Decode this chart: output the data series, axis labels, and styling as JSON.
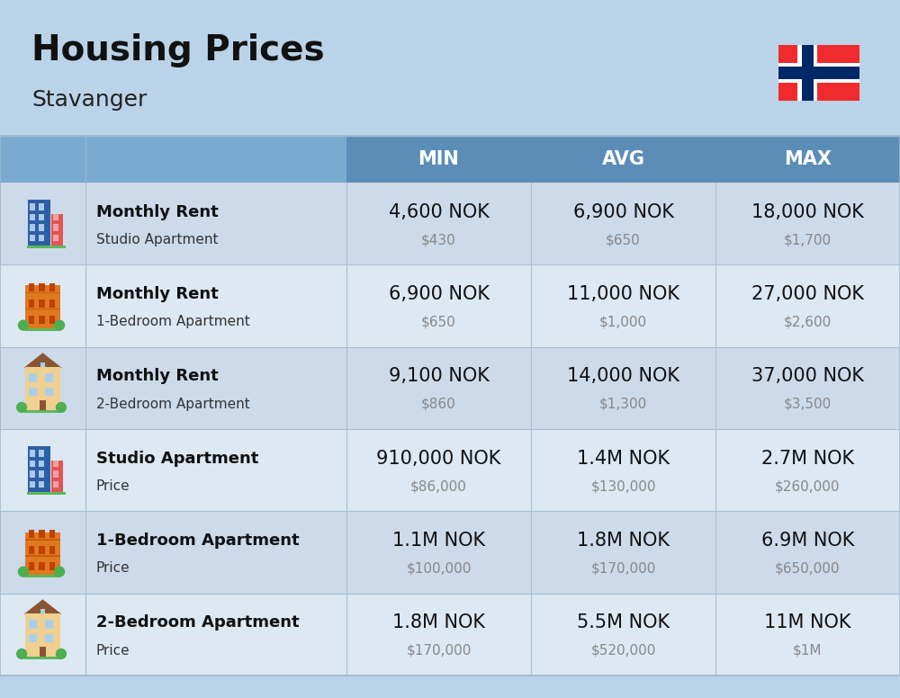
{
  "title": "Housing Prices",
  "subtitle": "Stavanger",
  "bg_color": "#bad3e8",
  "header_bg": "#5b8db8",
  "header_text_color": "#ffffff",
  "row_bg_even": "#ccdaea",
  "row_bg_odd": "#dce8f2",
  "col_headers": [
    "MIN",
    "AVG",
    "MAX"
  ],
  "rows": [
    {
      "bold": "Monthly Rent",
      "sub": "Studio Apartment",
      "min_nok": "4,600 NOK",
      "min_usd": "$430",
      "avg_nok": "6,900 NOK",
      "avg_usd": "$650",
      "max_nok": "18,000 NOK",
      "max_usd": "$1,700",
      "icon": "blue_office"
    },
    {
      "bold": "Monthly Rent",
      "sub": "1-Bedroom Apartment",
      "min_nok": "6,900 NOK",
      "min_usd": "$650",
      "avg_nok": "11,000 NOK",
      "avg_usd": "$1,000",
      "max_nok": "27,000 NOK",
      "max_usd": "$2,600",
      "icon": "orange_apt"
    },
    {
      "bold": "Monthly Rent",
      "sub": "2-Bedroom Apartment",
      "min_nok": "9,100 NOK",
      "min_usd": "$860",
      "avg_nok": "14,000 NOK",
      "avg_usd": "$1,300",
      "max_nok": "37,000 NOK",
      "max_usd": "$3,500",
      "icon": "beige_house"
    },
    {
      "bold": "Studio Apartment",
      "sub": "Price",
      "min_nok": "910,000 NOK",
      "min_usd": "$86,000",
      "avg_nok": "1.4M NOK",
      "avg_usd": "$130,000",
      "max_nok": "2.7M NOK",
      "max_usd": "$260,000",
      "icon": "blue_office"
    },
    {
      "bold": "1-Bedroom Apartment",
      "sub": "Price",
      "min_nok": "1.1M NOK",
      "min_usd": "$100,000",
      "avg_nok": "1.8M NOK",
      "avg_usd": "$170,000",
      "max_nok": "6.9M NOK",
      "max_usd": "$650,000",
      "icon": "orange_apt"
    },
    {
      "bold": "2-Bedroom Apartment",
      "sub": "Price",
      "min_nok": "1.8M NOK",
      "min_usd": "$170,000",
      "avg_nok": "5.5M NOK",
      "avg_usd": "$520,000",
      "max_nok": "11M NOK",
      "max_usd": "$1M",
      "icon": "beige_house"
    }
  ],
  "nok_fontsize": 15,
  "usd_fontsize": 11,
  "label_bold_fontsize": 13,
  "label_sub_fontsize": 11,
  "header_fontsize": 15
}
